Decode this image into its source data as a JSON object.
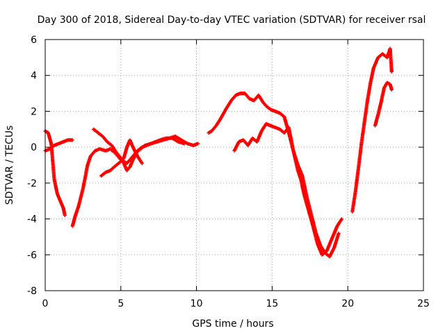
{
  "chart_data": {
    "type": "scatter",
    "title": "Day 300 of 2018, Sidereal Day-to-day VTEC variation (SDTVAR) for receiver rsal",
    "xlabel": "GPS time / hours",
    "ylabel": "SDTVAR / TECUs",
    "xlim": [
      0,
      25
    ],
    "ylim": [
      -8,
      6
    ],
    "xticks": [
      0,
      5,
      10,
      15,
      20,
      25
    ],
    "yticks": [
      -8,
      -6,
      -4,
      -2,
      0,
      2,
      4,
      6
    ],
    "xtick_labels": [
      "0",
      "5",
      "10",
      "15",
      "20",
      "25"
    ],
    "ytick_labels": [
      "-8",
      "-6",
      "-4",
      "-2",
      "0",
      "2",
      "4",
      "6"
    ],
    "grid": true,
    "marker": "plus",
    "color": "#ff0000",
    "series": [
      {
        "x": [
          0.0,
          0.2,
          0.4,
          0.6,
          0.8,
          1.0,
          1.2,
          1.3
        ],
        "y": [
          0.9,
          0.8,
          0.2,
          -1.8,
          -2.6,
          -3.0,
          -3.4,
          -3.8
        ]
      },
      {
        "x": [
          0.0,
          0.3,
          0.6,
          0.9,
          1.2,
          1.5,
          1.8
        ],
        "y": [
          -0.2,
          -0.1,
          0.1,
          0.2,
          0.3,
          0.4,
          0.4
        ]
      },
      {
        "x": [
          1.8,
          2.0,
          2.2,
          2.5,
          2.8,
          3.0,
          3.3,
          3.6,
          4.0,
          4.3,
          4.6,
          5.0,
          5.4,
          5.7,
          6.0,
          6.3,
          6.6,
          7.0,
          7.4,
          7.8,
          8.2,
          8.6,
          9.0,
          9.4,
          9.8,
          10.1
        ],
        "y": [
          -4.4,
          -3.8,
          -3.3,
          -2.3,
          -1.0,
          -0.5,
          -0.2,
          -0.1,
          -0.2,
          -0.1,
          -0.3,
          -0.7,
          -0.9,
          -0.6,
          -0.3,
          -0.1,
          0.1,
          0.2,
          0.3,
          0.4,
          0.5,
          0.6,
          0.4,
          0.2,
          0.1,
          0.2
        ]
      },
      {
        "x": [
          3.2,
          3.5,
          3.8,
          4.1,
          4.4,
          4.7,
          5.0,
          5.2,
          5.4,
          5.6,
          5.8,
          6.1,
          6.4,
          6.7,
          7.0,
          7.3,
          7.6,
          8.0,
          8.4,
          8.8,
          9.2
        ],
        "y": [
          1.0,
          0.8,
          0.6,
          0.3,
          0.1,
          -0.3,
          -0.6,
          -0.9,
          -1.3,
          -1.1,
          -0.7,
          -0.2,
          0.0,
          0.1,
          0.2,
          0.3,
          0.4,
          0.5,
          0.5,
          0.3,
          0.2
        ]
      },
      {
        "x": [
          3.7,
          4.0,
          4.3,
          4.7,
          5.0,
          5.2,
          5.4,
          5.6,
          5.8,
          6.1,
          6.4
        ],
        "y": [
          -1.6,
          -1.4,
          -1.3,
          -1.0,
          -0.8,
          -0.6,
          0.0,
          0.4,
          0.0,
          -0.5,
          -0.9
        ]
      },
      {
        "x": [
          10.8,
          11.0,
          11.3,
          11.6,
          12.0,
          12.3,
          12.6,
          12.9,
          13.2,
          13.5,
          13.8,
          14.1,
          14.4,
          14.6,
          14.9,
          15.2,
          15.5,
          15.8,
          16.1,
          16.4,
          16.7,
          16.9,
          17.1,
          17.4,
          17.7,
          18.0,
          18.3,
          18.6,
          18.9,
          19.1,
          19.3,
          19.6
        ],
        "y": [
          0.8,
          0.9,
          1.2,
          1.6,
          2.2,
          2.6,
          2.9,
          3.0,
          3.0,
          2.7,
          2.6,
          2.9,
          2.5,
          2.3,
          2.1,
          2.0,
          1.9,
          1.7,
          0.8,
          -0.2,
          -1.3,
          -1.8,
          -2.6,
          -3.5,
          -4.4,
          -5.4,
          -6.0,
          -5.8,
          -5.2,
          -4.8,
          -4.4,
          -4.0
        ]
      },
      {
        "x": [
          12.5,
          12.8,
          13.1,
          13.4,
          13.7,
          14.0,
          14.3,
          14.6,
          14.9,
          15.2,
          15.5,
          15.8,
          16.1,
          16.4,
          16.7,
          17.0,
          17.3,
          17.6,
          17.9,
          18.2,
          18.5,
          18.8,
          19.1,
          19.4
        ],
        "y": [
          -0.2,
          0.3,
          0.4,
          0.1,
          0.5,
          0.3,
          0.9,
          1.3,
          1.2,
          1.1,
          1.0,
          0.8,
          1.1,
          -0.2,
          -1.0,
          -1.6,
          -2.8,
          -3.8,
          -4.8,
          -5.5,
          -5.9,
          -6.1,
          -5.6,
          -4.8
        ]
      },
      {
        "x": [
          20.3,
          20.5,
          20.7,
          20.9,
          21.1,
          21.3,
          21.5,
          21.7,
          22.0,
          22.3,
          22.6,
          22.8,
          22.9
        ],
        "y": [
          -3.6,
          -2.5,
          -1.2,
          0.2,
          1.4,
          2.6,
          3.6,
          4.4,
          5.0,
          5.2,
          5.0,
          5.5,
          4.2
        ]
      },
      {
        "x": [
          21.8,
          22.0,
          22.2,
          22.4,
          22.6,
          22.8,
          22.9
        ],
        "y": [
          1.2,
          1.8,
          2.5,
          3.3,
          3.6,
          3.5,
          3.2
        ]
      }
    ]
  }
}
